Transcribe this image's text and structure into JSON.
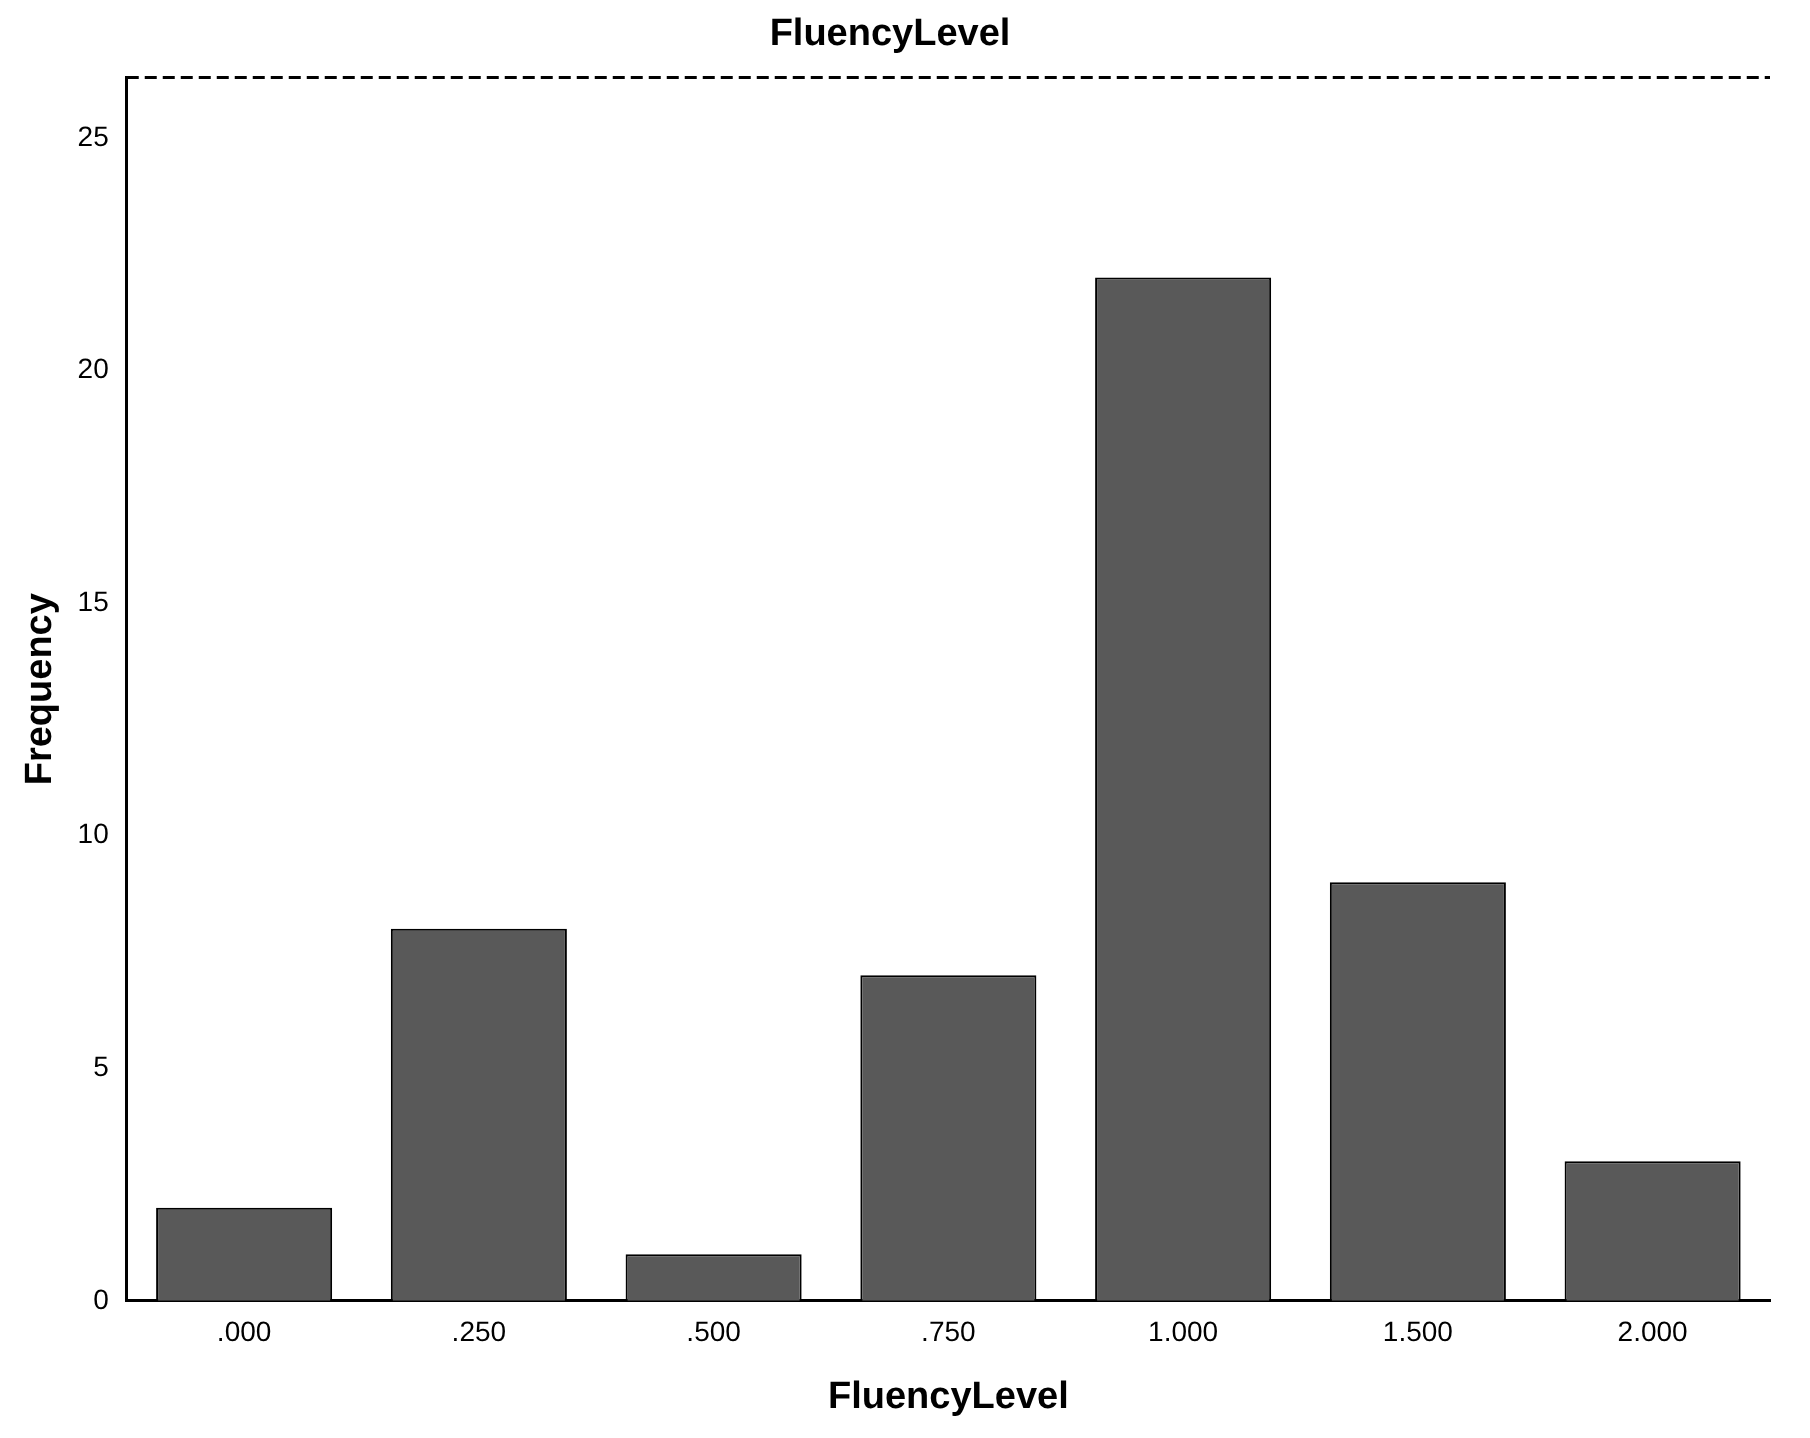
{
  "chart_data": {
    "type": "bar",
    "title": "FluencyLevel",
    "xlabel": "FluencyLevel",
    "ylabel": "Frequency",
    "categories": [
      ".000",
      ".250",
      ".500",
      ".750",
      "1.000",
      "1.500",
      "2.000"
    ],
    "values": [
      2,
      8,
      1,
      7,
      22,
      9,
      3
    ],
    "color": "#595959",
    "ylim": [
      0,
      26.3
    ],
    "yticks": [
      0,
      5,
      10,
      15,
      20,
      25
    ],
    "grid": false,
    "legend": false
  }
}
